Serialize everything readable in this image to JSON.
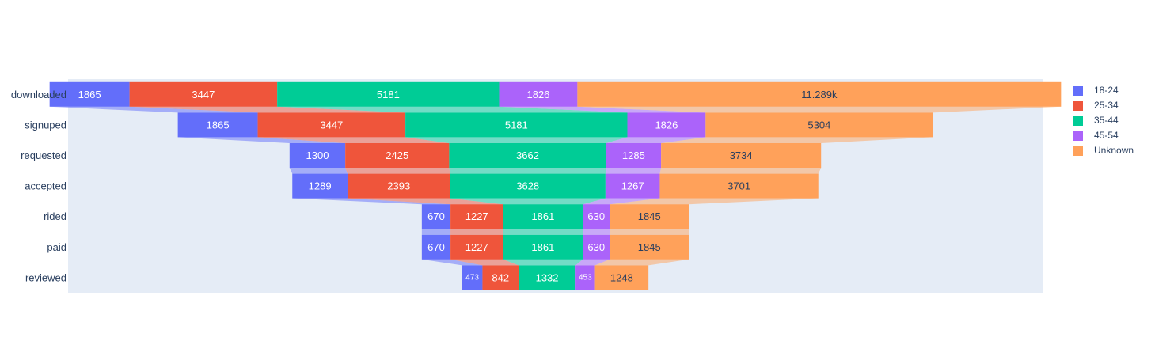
{
  "chart_data": {
    "type": "funnel",
    "stages": [
      "downloaded",
      "signuped",
      "requested",
      "accepted",
      "rided",
      "paid",
      "reviewed"
    ],
    "series": [
      {
        "name": "18-24",
        "color": "#636efa",
        "values": [
          1865,
          1865,
          1300,
          1289,
          670,
          670,
          473
        ]
      },
      {
        "name": "25-34",
        "color": "#EF553B",
        "values": [
          3447,
          3447,
          2425,
          2393,
          1227,
          1227,
          842
        ]
      },
      {
        "name": "35-44",
        "color": "#00cc96",
        "values": [
          5181,
          5181,
          3662,
          3628,
          1861,
          1861,
          1332
        ]
      },
      {
        "name": "45-54",
        "color": "#ab63fa",
        "values": [
          1826,
          1826,
          1285,
          1267,
          630,
          630,
          453
        ]
      },
      {
        "name": "Unknown",
        "color": "#FFA15A",
        "values": [
          11289,
          5304,
          3734,
          3701,
          1845,
          1845,
          1248
        ]
      }
    ],
    "value_labels": [
      [
        "1865",
        "1865",
        "1300",
        "1289",
        "670",
        "670",
        "473"
      ],
      [
        "3447",
        "3447",
        "2425",
        "2393",
        "1227",
        "1227",
        "842"
      ],
      [
        "5181",
        "5181",
        "3662",
        "3628",
        "1861",
        "1861",
        "1332"
      ],
      [
        "1826",
        "1826",
        "1285",
        "1267",
        "630",
        "630",
        "453"
      ],
      [
        "11.289k",
        "5304",
        "3734",
        "3701",
        "1845",
        "1845",
        "1248"
      ]
    ],
    "legend_position": "top-right",
    "plot_background": "#E5ECF6"
  }
}
